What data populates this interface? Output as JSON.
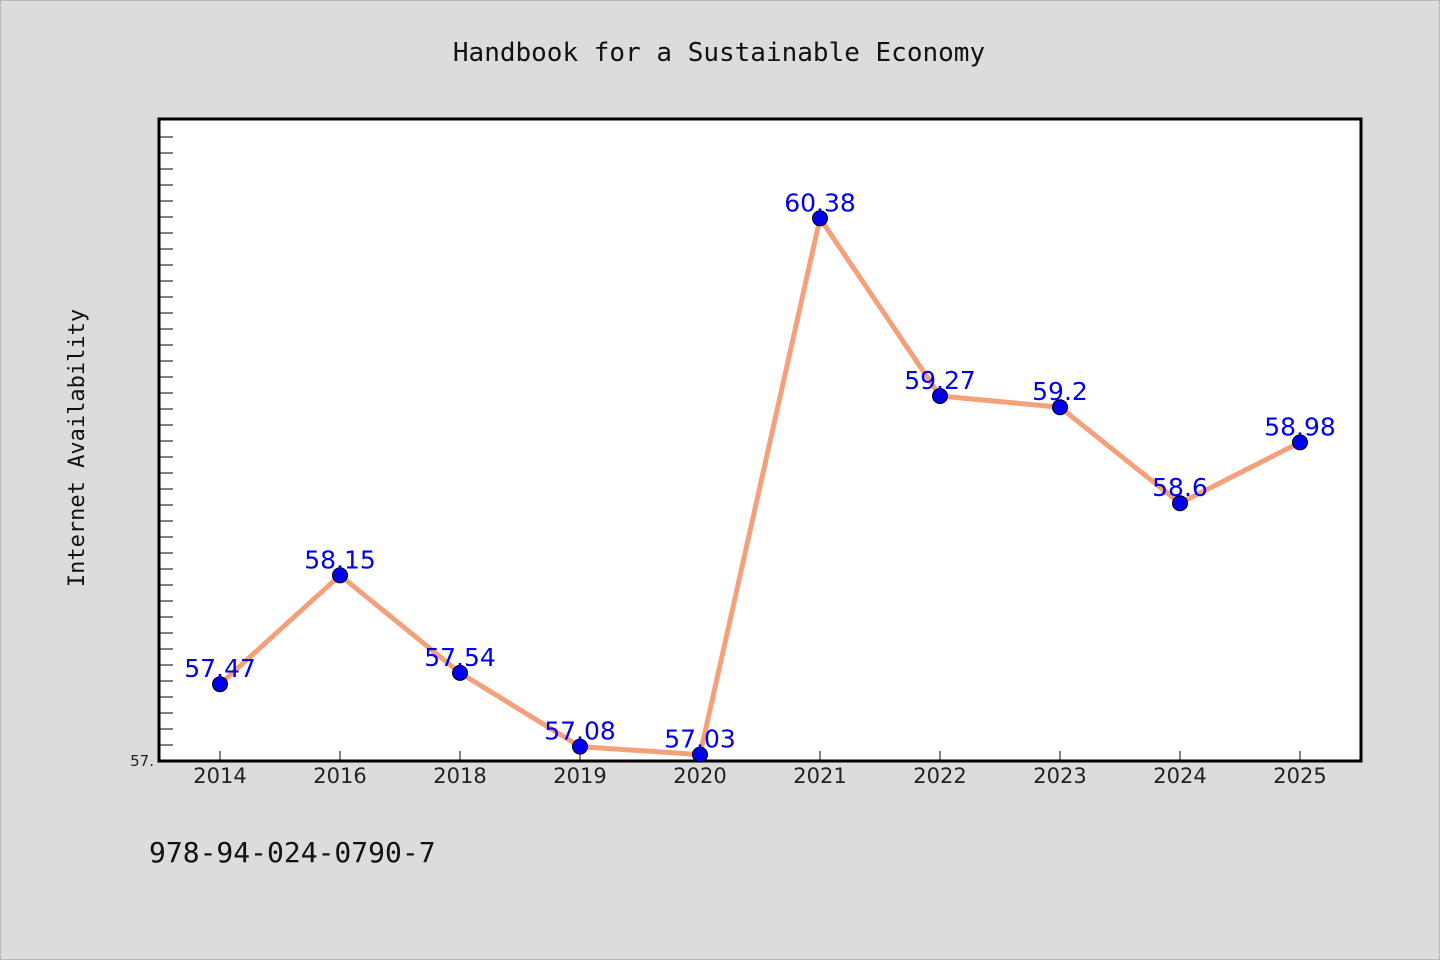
{
  "chart_data": {
    "type": "line",
    "title": "Handbook for a Sustainable Economy",
    "ylabel": "Internet Availability",
    "xlabel": "",
    "categories": [
      "2014",
      "2016",
      "2018",
      "2019",
      "2020",
      "2021",
      "2022",
      "2023",
      "2024",
      "2025"
    ],
    "values": [
      57.47,
      58.15,
      57.54,
      57.08,
      57.03,
      60.38,
      59.27,
      59.2,
      58.6,
      58.98
    ],
    "value_labels": [
      "57.47",
      "58.15",
      "57.54",
      "57.08",
      "57.03",
      "60.38",
      "59.27",
      "59.2",
      "58.6",
      "58.98"
    ],
    "ylim": [
      56.99,
      61.0
    ],
    "y_tick_label": "57.",
    "grid": false,
    "line_color": "#f4a07a",
    "marker_color": "#0000ee",
    "label_color": "#0000ee",
    "background_color": "#dcdcdc",
    "plot_background": "#ffffff"
  },
  "footer": {
    "isbn": "978-94-024-0790-7"
  }
}
